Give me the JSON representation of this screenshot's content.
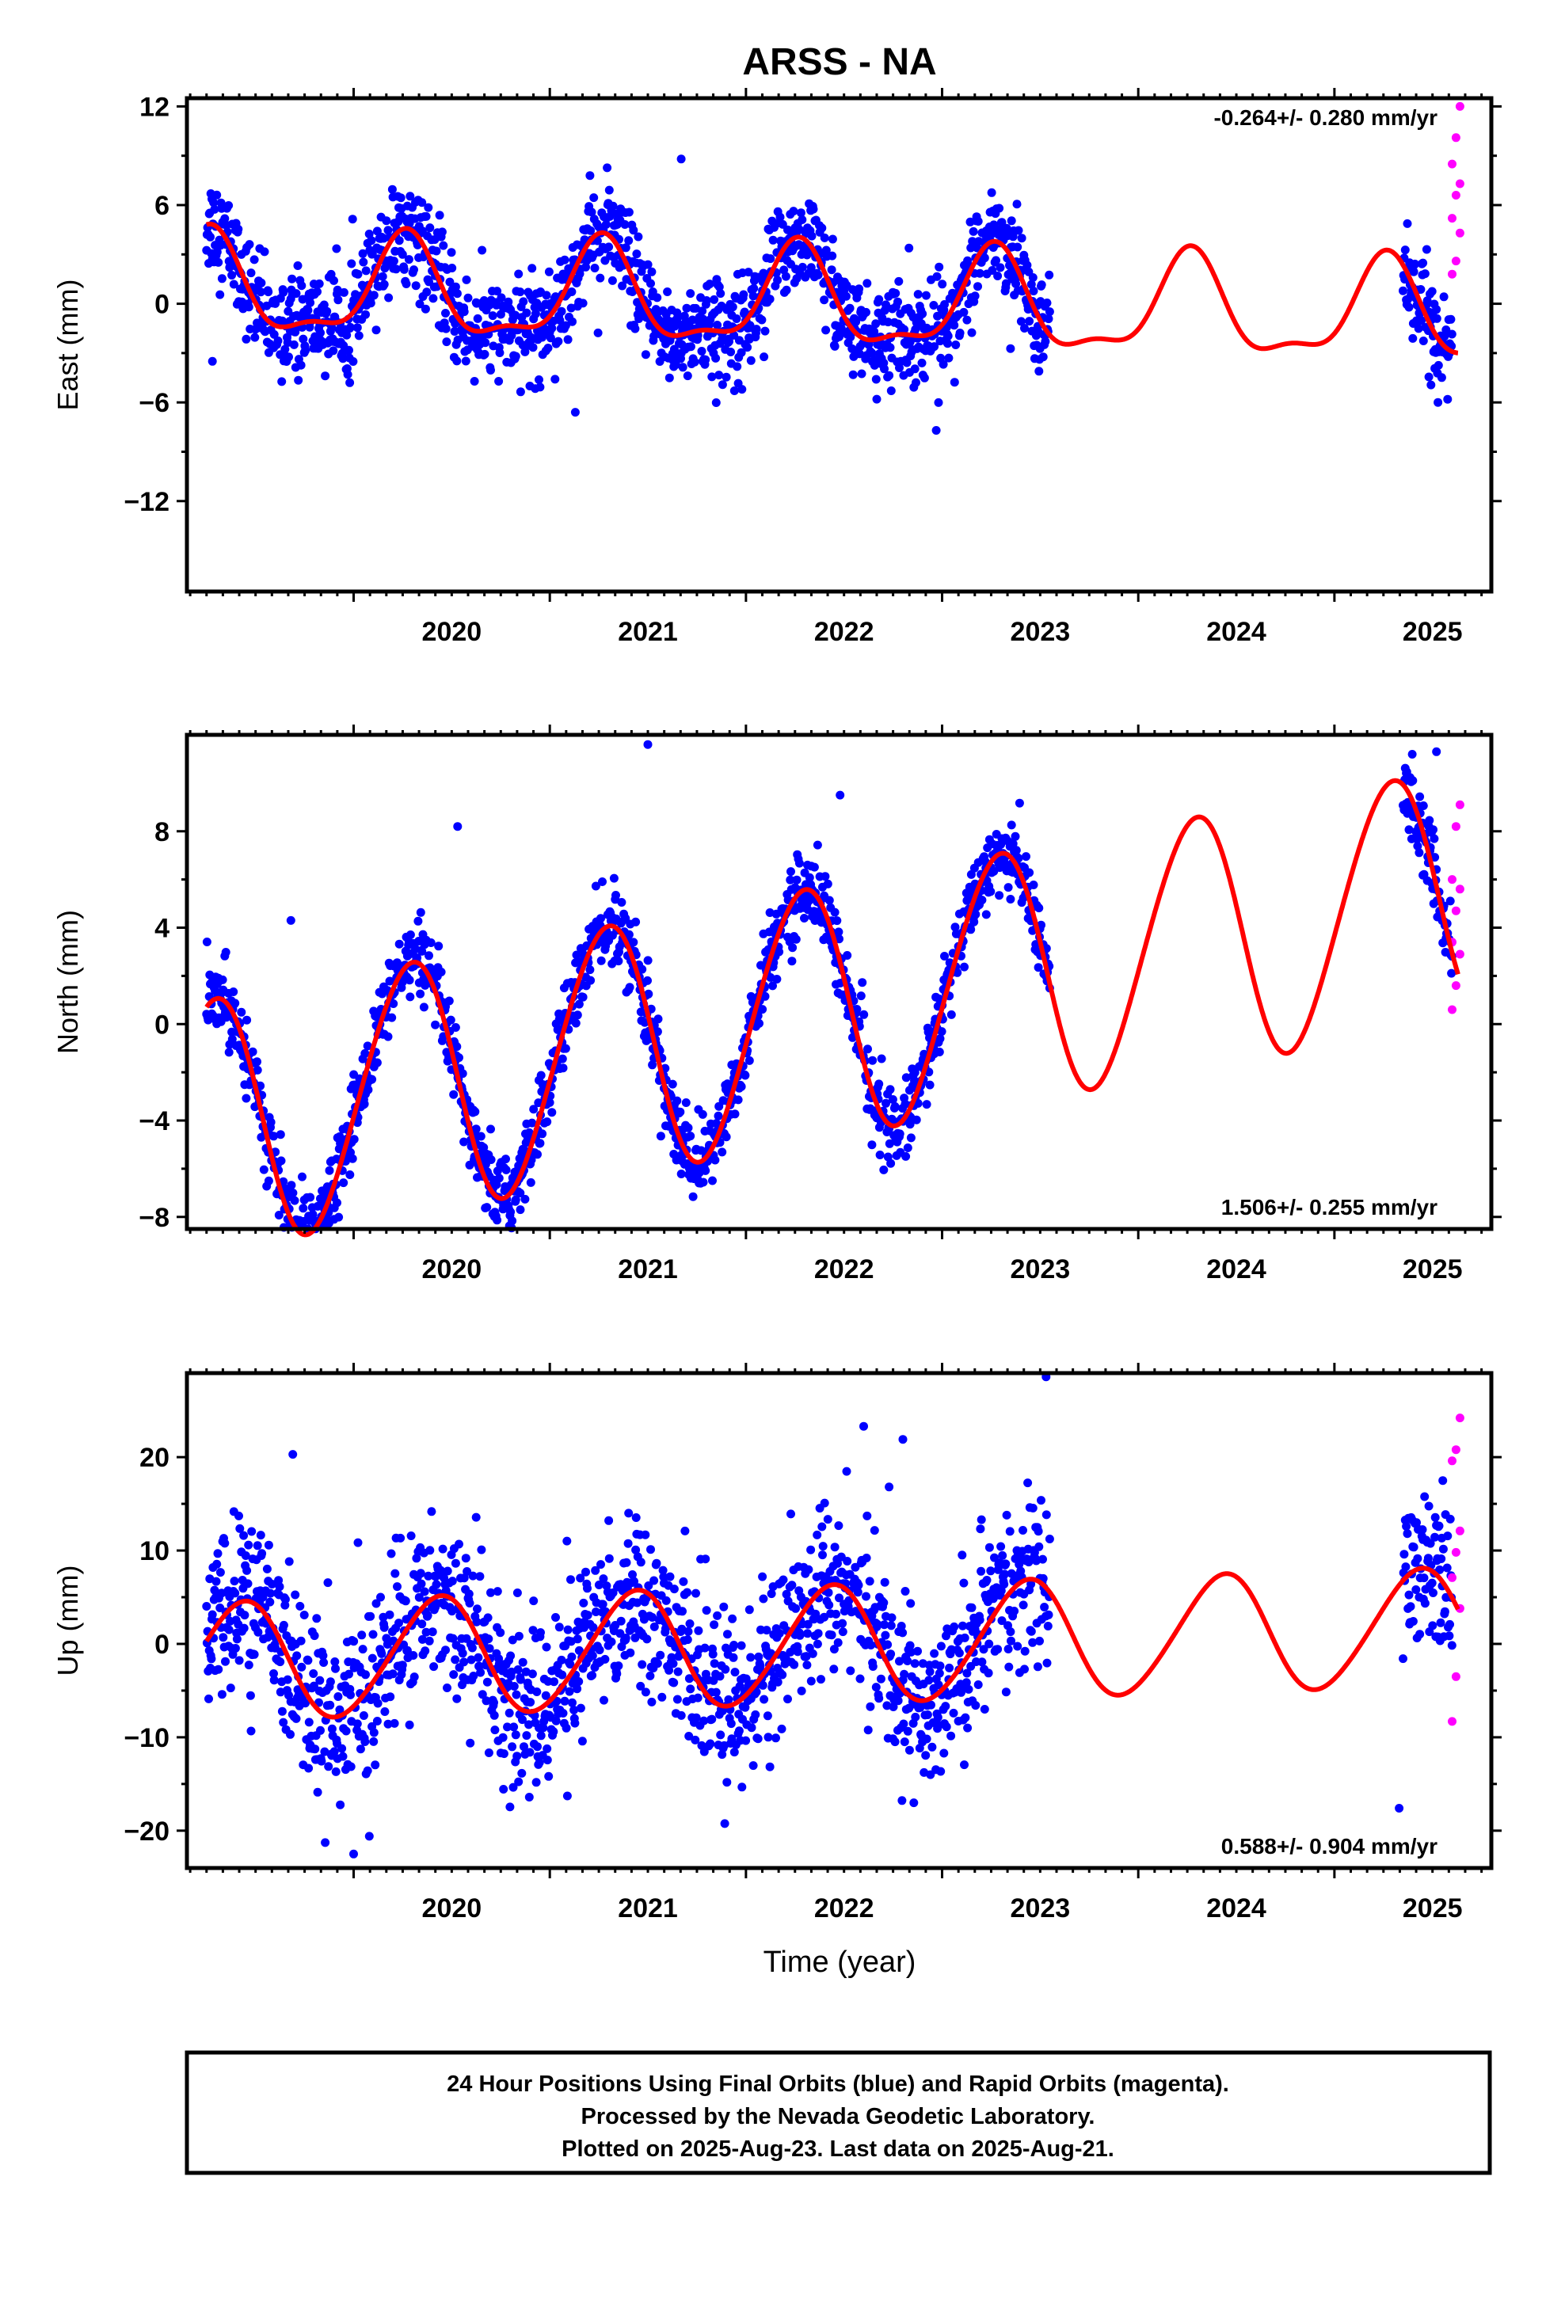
{
  "title": "ARSS - NA",
  "x_axis_label": "Time (year)",
  "footer": {
    "line1": "24 Hour Positions Using Final Orbits (blue) and Rapid Orbits (magenta).",
    "line2": "Processed by the Nevada Geodetic Laboratory.",
    "line3": "Plotted on 2025-Aug-23. Last data on 2025-Aug-21."
  },
  "colors": {
    "final_orbits": "#0000ff",
    "rapid_orbits": "#ff00ff",
    "model_fit": "#ff0000",
    "axes": "#000000"
  },
  "chart_data": [
    {
      "type": "scatter",
      "name": "east",
      "ylabel": "East (mm)",
      "rate_label": "-0.264+/- 0.280 mm/yr",
      "rate_position": "top-right",
      "xlim": [
        2019.15,
        2025.8
      ],
      "ylim": [
        -17.5,
        12.5
      ],
      "yticks": [
        -12,
        -6,
        0,
        6,
        12
      ],
      "yticklabels": [
        "−12",
        "−6",
        "0",
        "6",
        "12"
      ],
      "xticks": [
        2020,
        2021,
        2022,
        2023,
        2024,
        2025
      ],
      "xticklabels": [
        "2020",
        "2021",
        "2022",
        "2023",
        "2024",
        "2025"
      ],
      "series": [
        {
          "kind": "final_orbits",
          "segments": [
            [
              2019.25,
              2023.55
            ],
            [
              2025.35,
              2025.6
            ]
          ],
          "noise_sd": 1.5
        },
        {
          "kind": "rapid_orbits",
          "y": [
            1.8,
            2.6,
            4.3,
            5.2,
            6.6,
            7.3,
            8.5,
            10.1,
            12.0
          ],
          "x_range": [
            2025.6,
            2025.64
          ]
        },
        {
          "kind": "model_fit",
          "model": {
            "offset": 0.05,
            "rate": -0.264,
            "ref_year": 2022.5,
            "annual_sin": 2.9,
            "annual_cos": -0.2,
            "semi_sin": -0.3,
            "semi_cos": -1.0
          },
          "x_range": [
            2019.25,
            2025.63
          ]
        }
      ],
      "outliers": [
        {
          "x": 2021.67,
          "y": 8.8
        },
        {
          "x": 2019.28,
          "y": -3.5
        },
        {
          "x": 2021.13,
          "y": -6.6
        },
        {
          "x": 2022.97,
          "y": -7.7
        },
        {
          "x": 2023.27,
          "y": 3.6
        },
        {
          "x": 2019.98,
          "y": -4.8
        }
      ]
    },
    {
      "type": "scatter",
      "name": "north",
      "ylabel": "North (mm)",
      "rate_label": "1.506+/- 0.255 mm/yr",
      "rate_position": "bottom-right",
      "xlim": [
        2019.15,
        2025.8
      ],
      "ylim": [
        -8.5,
        12
      ],
      "yticks": [
        -8,
        -4,
        0,
        4,
        8
      ],
      "yticklabels": [
        "−8",
        "−4",
        "0",
        "4",
        "8"
      ],
      "xticks": [
        2020,
        2021,
        2022,
        2023,
        2024,
        2025
      ],
      "xticklabels": [
        "2020",
        "2021",
        "2022",
        "2023",
        "2024",
        "2025"
      ],
      "series": [
        {
          "kind": "final_orbits",
          "segments": [
            [
              2019.25,
              2023.55
            ],
            [
              2025.35,
              2025.6
            ]
          ],
          "noise_sd": 0.8
        },
        {
          "kind": "rapid_orbits",
          "y": [
            0.6,
            1.6,
            2.9,
            3.4,
            4.7,
            5.6,
            6.0,
            8.2,
            9.1
          ],
          "x_range": [
            2025.6,
            2025.64
          ]
        },
        {
          "kind": "model_fit",
          "model": {
            "offset": 0.7,
            "rate": 1.506,
            "ref_year": 2022.5,
            "annual_sin": 5.1,
            "annual_cos": -1.0,
            "semi_sin": -0.3,
            "semi_cos": 0.2
          },
          "x_range": [
            2019.25,
            2025.63
          ]
        }
      ],
      "outliers": [
        {
          "x": 2021.5,
          "y": 11.6
        },
        {
          "x": 2022.48,
          "y": 9.5
        },
        {
          "x": 2020.53,
          "y": 8.2
        },
        {
          "x": 2019.9,
          "y": -8.1
        },
        {
          "x": 2020.85,
          "y": -7.7
        },
        {
          "x": 2019.68,
          "y": 4.3
        },
        {
          "x": 2025.52,
          "y": 11.3
        }
      ]
    },
    {
      "type": "scatter",
      "name": "up",
      "ylabel": "Up (mm)",
      "rate_label": "0.588+/- 0.904 mm/yr",
      "rate_position": "bottom-right",
      "xlim": [
        2019.15,
        2025.8
      ],
      "ylim": [
        -24,
        29
      ],
      "yticks": [
        -20,
        -10,
        0,
        10,
        20
      ],
      "yticklabels": [
        "−20",
        "−10",
        "0",
        "10",
        "20"
      ],
      "xticks": [
        2020,
        2021,
        2022,
        2023,
        2024,
        2025
      ],
      "xticklabels": [
        "2020",
        "2021",
        "2022",
        "2023",
        "2024",
        "2025"
      ],
      "series": [
        {
          "kind": "final_orbits",
          "segments": [
            [
              2019.25,
              2023.55
            ],
            [
              2025.35,
              2025.6
            ]
          ],
          "noise_sd": 4.5
        },
        {
          "kind": "rapid_orbits",
          "y": [
            -8.3,
            -3.5,
            3.8,
            7.1,
            9.8,
            12.1,
            19.6,
            20.8,
            24.2
          ],
          "x_range": [
            2025.6,
            2025.64
          ]
        },
        {
          "kind": "model_fit",
          "model": {
            "offset": -0.1,
            "rate": 0.588,
            "ref_year": 2022.5,
            "annual_sin": 2.8,
            "annual_cos": -5.6,
            "semi_sin": 0.2,
            "semi_cos": 0.5
          },
          "x_range": [
            2019.25,
            2025.63
          ]
        }
      ],
      "outliers": [
        {
          "x": 2023.53,
          "y": 28.6
        },
        {
          "x": 2022.6,
          "y": 23.3
        },
        {
          "x": 2022.8,
          "y": 21.9
        },
        {
          "x": 2020.0,
          "y": -22.5
        },
        {
          "x": 2020.08,
          "y": -20.6
        },
        {
          "x": 2019.69,
          "y": 20.3
        },
        {
          "x": 2025.33,
          "y": -17.6
        }
      ]
    }
  ]
}
